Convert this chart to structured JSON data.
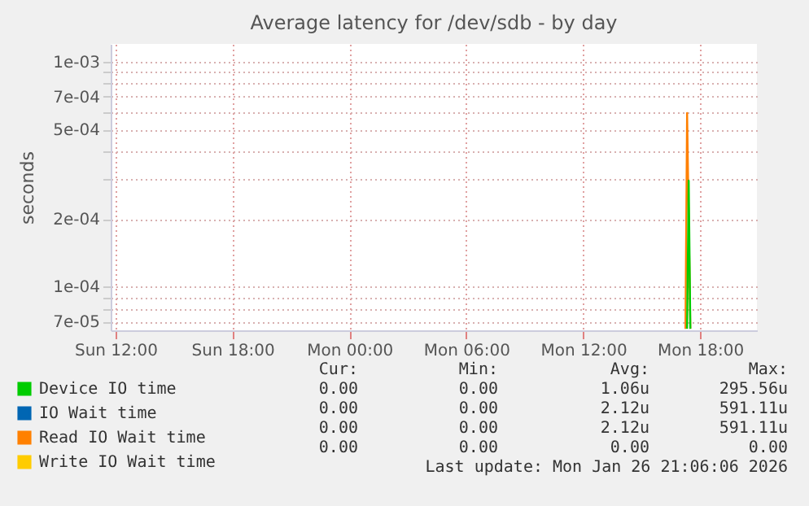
{
  "chart_data": {
    "type": "line",
    "title": "Average latency for /dev/sdb - by day",
    "ylabel": "seconds",
    "log": true,
    "grid": true,
    "legend": "bottom left",
    "line_style": "solid",
    "marker": "none",
    "xlim": [
      "2026-01-25T11:45",
      "2026-01-26T20:55"
    ],
    "xticks": [
      {
        "value": "2026-01-25T12:00",
        "label": "Sun 12:00"
      },
      {
        "value": "2026-01-25T18:00",
        "label": "Sun 18:00"
      },
      {
        "value": "2026-01-26T00:00",
        "label": "Mon 00:00"
      },
      {
        "value": "2026-01-26T06:00",
        "label": "Mon 06:00"
      },
      {
        "value": "2026-01-26T12:00",
        "label": "Mon 12:00"
      },
      {
        "value": "2026-01-26T18:00",
        "label": "Mon 18:00"
      }
    ],
    "ylim": [
      6.4e-05,
      0.0012
    ],
    "yticks": [
      {
        "value": 7e-05,
        "label": "7e-05"
      },
      {
        "value": 8e-05,
        "label": null
      },
      {
        "value": 9e-05,
        "label": null
      },
      {
        "value": 0.0001,
        "label": "1e-04"
      },
      {
        "value": 0.0002,
        "label": "2e-04"
      },
      {
        "value": 0.0003,
        "label": null
      },
      {
        "value": 0.0004,
        "label": null
      },
      {
        "value": 0.0005,
        "label": "5e-04"
      },
      {
        "value": 0.0006,
        "label": null
      },
      {
        "value": 0.0007,
        "label": "7e-04"
      },
      {
        "value": 0.0008,
        "label": null
      },
      {
        "value": 0.0009,
        "label": null
      },
      {
        "value": 0.001,
        "label": "1e-03"
      }
    ],
    "series": [
      {
        "name": "Device IO time",
        "color": "#00cc00",
        "x": [
          "2026-01-26T17:20",
          "2026-01-26T17:25",
          "2026-01-26T17:30"
        ],
        "values": [
          6.5e-05,
          0.000296,
          6.5e-05
        ]
      },
      {
        "name": "IO Wait time",
        "color": "#0066b3"
      },
      {
        "name": "Read IO Wait time",
        "color": "#ff8000",
        "x": [
          "2026-01-26T17:15",
          "2026-01-26T17:20",
          "2026-01-26T17:30"
        ],
        "values": [
          6.5e-05,
          0.000591,
          6.5e-05
        ]
      },
      {
        "name": "Write IO Wait time",
        "color": "#ffcc00"
      }
    ],
    "annotations": [
      "Cur:",
      "Min:",
      "Avg:",
      "Max:",
      "0.00",
      "0.00",
      "1.06u",
      "295.56u",
      "0.00",
      "0.00",
      "2.12u",
      "591.11u",
      "0.00",
      "0.00",
      "2.12u",
      "591.11u",
      "0.00",
      "0.00",
      "0.00",
      "0.00",
      "Last update: Mon Jan 26 21:06:06 2026"
    ]
  }
}
